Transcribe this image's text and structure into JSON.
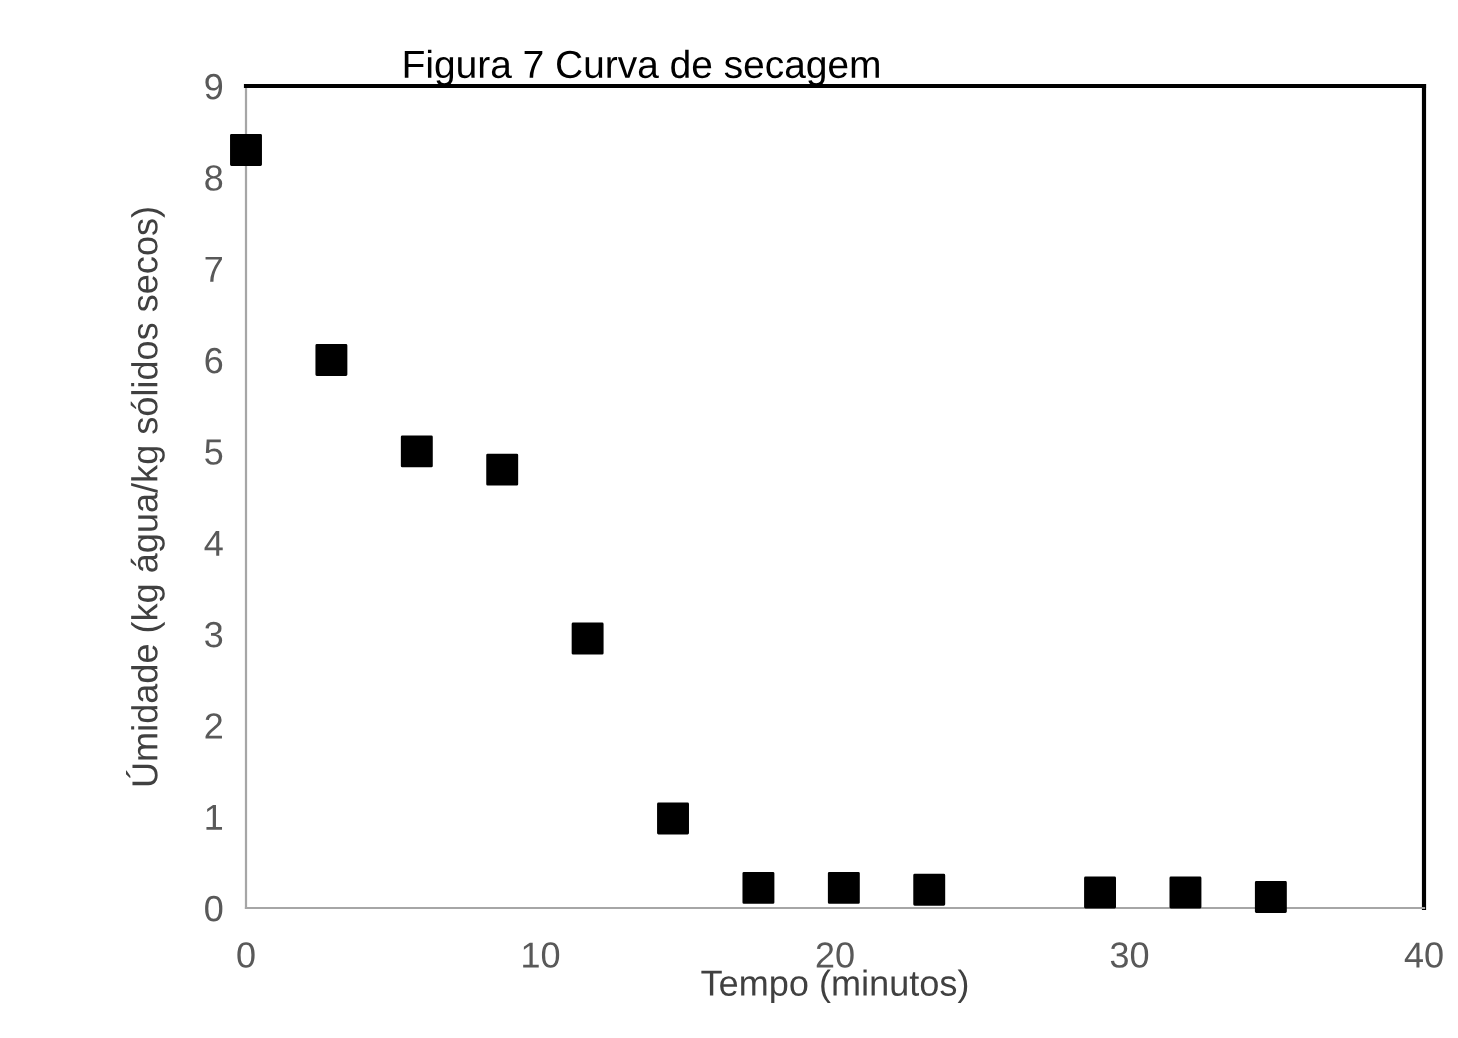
{
  "chart_data": {
    "type": "scatter",
    "title": "Figura 7 Curva de secagem",
    "xlabel": "Tempo (minutos)",
    "ylabel": "Úmidade (kg água/kg sólidos secos)",
    "x": [
      0,
      2.9,
      5.8,
      8.7,
      11.6,
      14.5,
      17.4,
      20.3,
      23.2,
      29,
      31.9,
      34.8
    ],
    "series": [
      {
        "color": "#000000",
        "values": [
          8.3,
          6.0,
          5.0,
          4.8,
          2.95,
          0.98,
          0.22,
          0.22,
          0.2,
          0.17,
          0.17,
          0.12
        ]
      }
    ],
    "xlim": [
      0,
      40
    ],
    "xticks": [
      0,
      10,
      20,
      30,
      40
    ],
    "ylim": [
      0,
      9
    ],
    "yticks": [
      0,
      1,
      2,
      3,
      4,
      5,
      6,
      7,
      8,
      9
    ],
    "marker": "square",
    "grid": false,
    "legend": false
  }
}
